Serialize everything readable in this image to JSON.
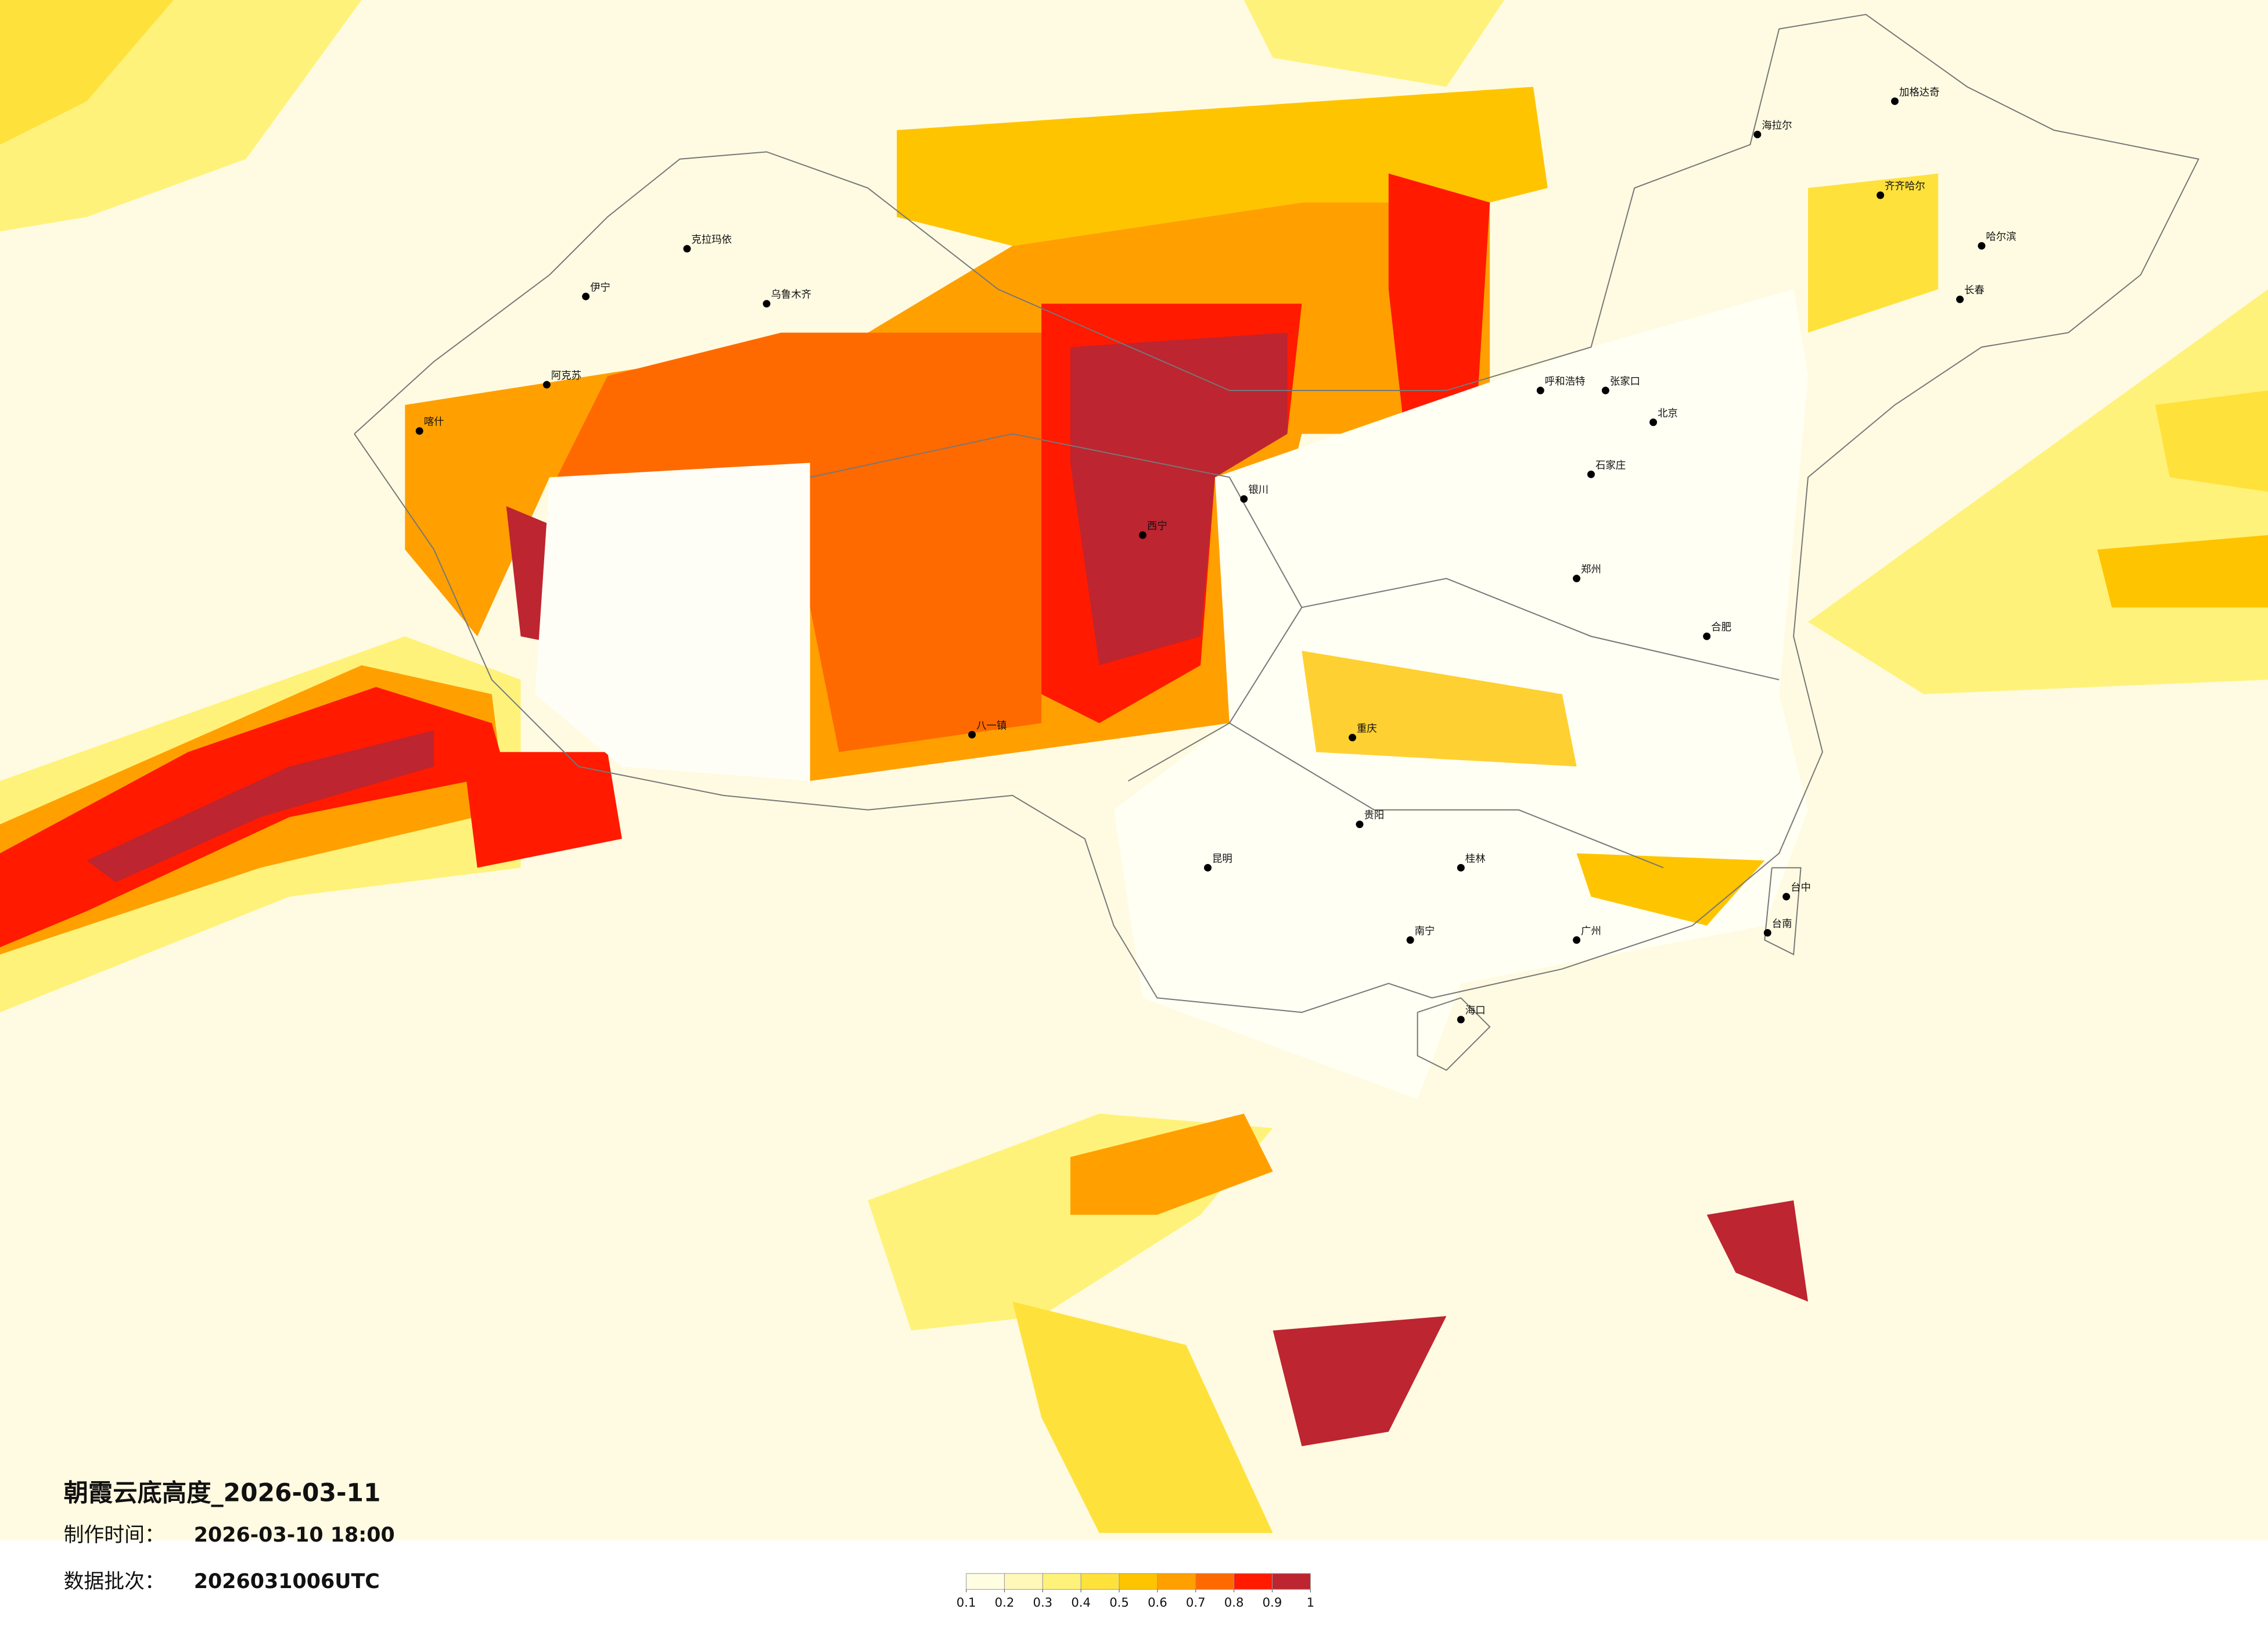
{
  "header": {
    "title": "朝霞云底高度_2026-03-11",
    "made_label": "制作时间：",
    "made_time": "2026-03-10 18:00",
    "batch_label": "数据批次：",
    "batch": "2026031006UTC"
  },
  "legend": {
    "ticks": [
      0.1,
      0.2,
      0.3,
      0.4,
      0.5,
      0.6,
      0.7,
      0.8,
      0.9,
      1
    ],
    "colors": [
      "#fffde2",
      "#fff8b8",
      "#fff27a",
      "#ffe13c",
      "#ffc400",
      "#ffa000",
      "#ff6a00",
      "#ff1a00",
      "#bd2530"
    ]
  },
  "cities": [
    "北京",
    "石家庄",
    "张家口",
    "呼和浩特",
    "哈尔滨",
    "长春",
    "齐齐哈尔",
    "海拉尔",
    "加格达奇",
    "克拉玛依",
    "伊宁",
    "乌鲁木齐",
    "阿克苏",
    "喀什",
    "重庆",
    "贵阳",
    "昆明",
    "南宁",
    "海口",
    "桂林",
    "郑州",
    "合肥",
    "台中",
    "台南",
    "银川",
    "西宁",
    "八一镇",
    "广州"
  ]
}
